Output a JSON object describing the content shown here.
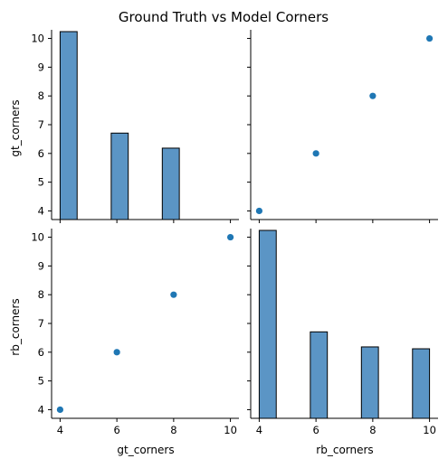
{
  "chart_data": {
    "type": "pairplot",
    "title": "Ground Truth vs Model Corners",
    "variables": [
      "gt_corners",
      "rb_corners"
    ],
    "ticks": [
      4,
      6,
      8,
      10
    ],
    "tick_labels": [
      "4",
      "6",
      "8",
      "10"
    ],
    "range": [
      3.7,
      10.3
    ],
    "diag_ylim": [
      0,
      10
    ],
    "colors": {
      "point": "#1f77b4",
      "bar": "#5b95c5",
      "edge": "#000000"
    },
    "panels": [
      {
        "id": "gt-hist",
        "row": 0,
        "col": 0,
        "kind": "hist",
        "bin_edges": [
          4.0,
          4.6,
          5.2,
          5.8,
          6.4,
          7.0,
          7.6,
          8.2,
          8.8,
          9.4,
          10.0
        ],
        "counts": [
          10,
          0,
          0,
          4.6,
          0,
          0,
          3.8,
          0,
          0,
          0
        ]
      },
      {
        "id": "gt-vs-rb-scatter",
        "row": 0,
        "col": 1,
        "kind": "scatter",
        "x_var": "rb_corners",
        "y_var": "gt_corners",
        "points": [
          [
            4,
            4
          ],
          [
            6,
            6
          ],
          [
            8,
            8
          ],
          [
            10,
            10
          ]
        ]
      },
      {
        "id": "rb-vs-gt-scatter",
        "row": 1,
        "col": 0,
        "kind": "scatter",
        "x_var": "gt_corners",
        "y_var": "rb_corners",
        "points": [
          [
            4,
            4
          ],
          [
            6,
            6
          ],
          [
            8,
            8
          ],
          [
            10,
            10
          ]
        ]
      },
      {
        "id": "rb-hist",
        "row": 1,
        "col": 1,
        "kind": "hist",
        "bin_edges": [
          4.0,
          4.6,
          5.2,
          5.8,
          6.4,
          7.0,
          7.6,
          8.2,
          8.8,
          9.4,
          10.0
        ],
        "counts": [
          10,
          0,
          0,
          4.6,
          0,
          0,
          3.8,
          0,
          0,
          3.7
        ]
      }
    ]
  }
}
